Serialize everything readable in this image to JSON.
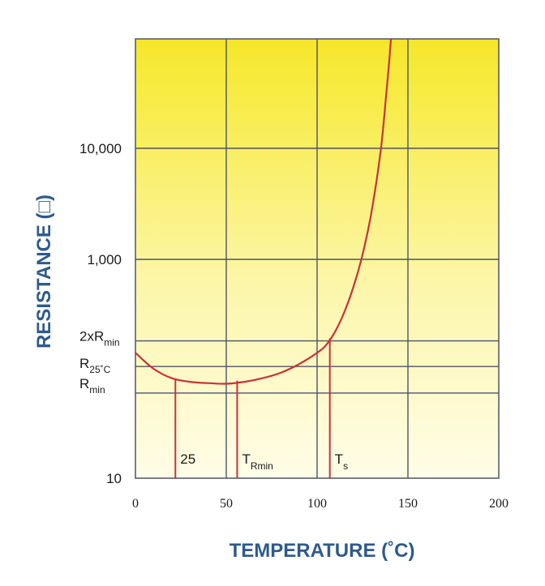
{
  "chart_data": {
    "type": "line",
    "title": "",
    "xlabel": "TEMPERATURE (˚C)",
    "ylabel": "RESISTANCE (□)",
    "xlim": [
      0,
      200
    ],
    "x_ticks": [
      "0",
      "50",
      "100",
      "150",
      "200"
    ],
    "y_scale": "log",
    "y_ticks": [
      {
        "value": 10,
        "label": "10"
      },
      {
        "value": 1000,
        "label": "1,000"
      },
      {
        "value": 10000,
        "label": "10,000"
      }
    ],
    "reference_levels": [
      {
        "name": "2xRmin",
        "label": "2xR",
        "sub": "min",
        "value": 180
      },
      {
        "name": "R25C",
        "label": "R",
        "sub": "25˚C",
        "value": 105
      },
      {
        "name": "Rmin",
        "label": "R",
        "sub": "min",
        "value": 60
      }
    ],
    "markers": [
      {
        "name": "marker-25",
        "x": 22,
        "y": 80,
        "label": "25",
        "sub": ""
      },
      {
        "name": "marker-t-rmin",
        "x": 56,
        "y": 78,
        "label": "T",
        "sub": "Rmin"
      },
      {
        "name": "marker-ts",
        "x": 107,
        "y": 190,
        "label": "T",
        "sub": "s"
      }
    ],
    "series": [
      {
        "x": [
          0,
          10,
          20,
          30,
          40,
          50,
          60,
          70,
          80,
          90,
          100,
          105,
          110,
          115,
          120,
          125,
          130,
          135,
          138,
          140,
          142
        ],
        "values": [
          140,
          100,
          82,
          76,
          74,
          73,
          76,
          82,
          92,
          110,
          140,
          165,
          220,
          330,
          560,
          1100,
          2700,
          9500,
          30000,
          70000,
          200000
        ]
      }
    ],
    "grid": true,
    "colors": {
      "line": "#c8323c",
      "axis_title": "#2e5a8c",
      "grid": "#4b5565",
      "bg_top": "#f5e62a",
      "bg_bottom": "#fffde0"
    }
  }
}
